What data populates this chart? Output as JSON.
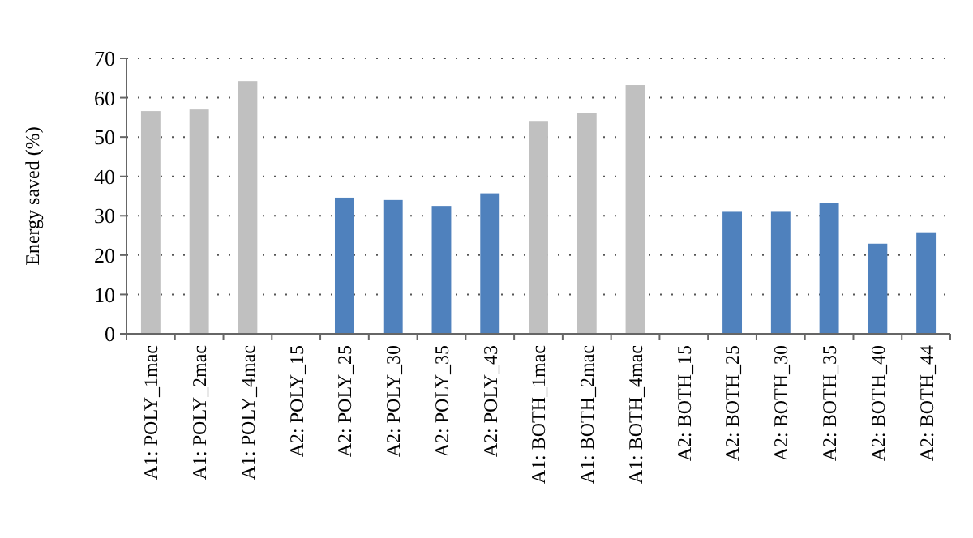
{
  "chart_data": {
    "type": "bar",
    "ylabel": "Energy saved (%)",
    "categories": [
      "A1: POLY_1mac",
      "A1: POLY_2mac",
      "A1: POLY_4mac",
      "A2: POLY_15",
      "A2: POLY_25",
      "A2: POLY_30",
      "A2: POLY_35",
      "A2: POLY_43",
      "A1: BOTH_1mac",
      "A1: BOTH_2mac",
      "A1: BOTH_4mac",
      "A2: BOTH_15",
      "A2: BOTH_25",
      "A2: BOTH_30",
      "A2: BOTH_35",
      "A2: BOTH_40",
      "A2: BOTH_44"
    ],
    "values": [
      56.6,
      57,
      64.2,
      0,
      34.6,
      34,
      32.5,
      35.7,
      54.1,
      56.2,
      63.2,
      0,
      31,
      31,
      33.2,
      22.9,
      25.8
    ],
    "colors": [
      "#c0c0c0",
      "#c0c0c0",
      "#c0c0c0",
      "#4f81bd",
      "#4f81bd",
      "#4f81bd",
      "#4f81bd",
      "#4f81bd",
      "#c0c0c0",
      "#c0c0c0",
      "#c0c0c0",
      "#4f81bd",
      "#4f81bd",
      "#4f81bd",
      "#4f81bd",
      "#4f81bd",
      "#4f81bd"
    ],
    "ylim": [
      0,
      70
    ],
    "yticks": [
      0,
      10,
      20,
      30,
      40,
      50,
      60,
      70
    ],
    "grid": "y"
  }
}
